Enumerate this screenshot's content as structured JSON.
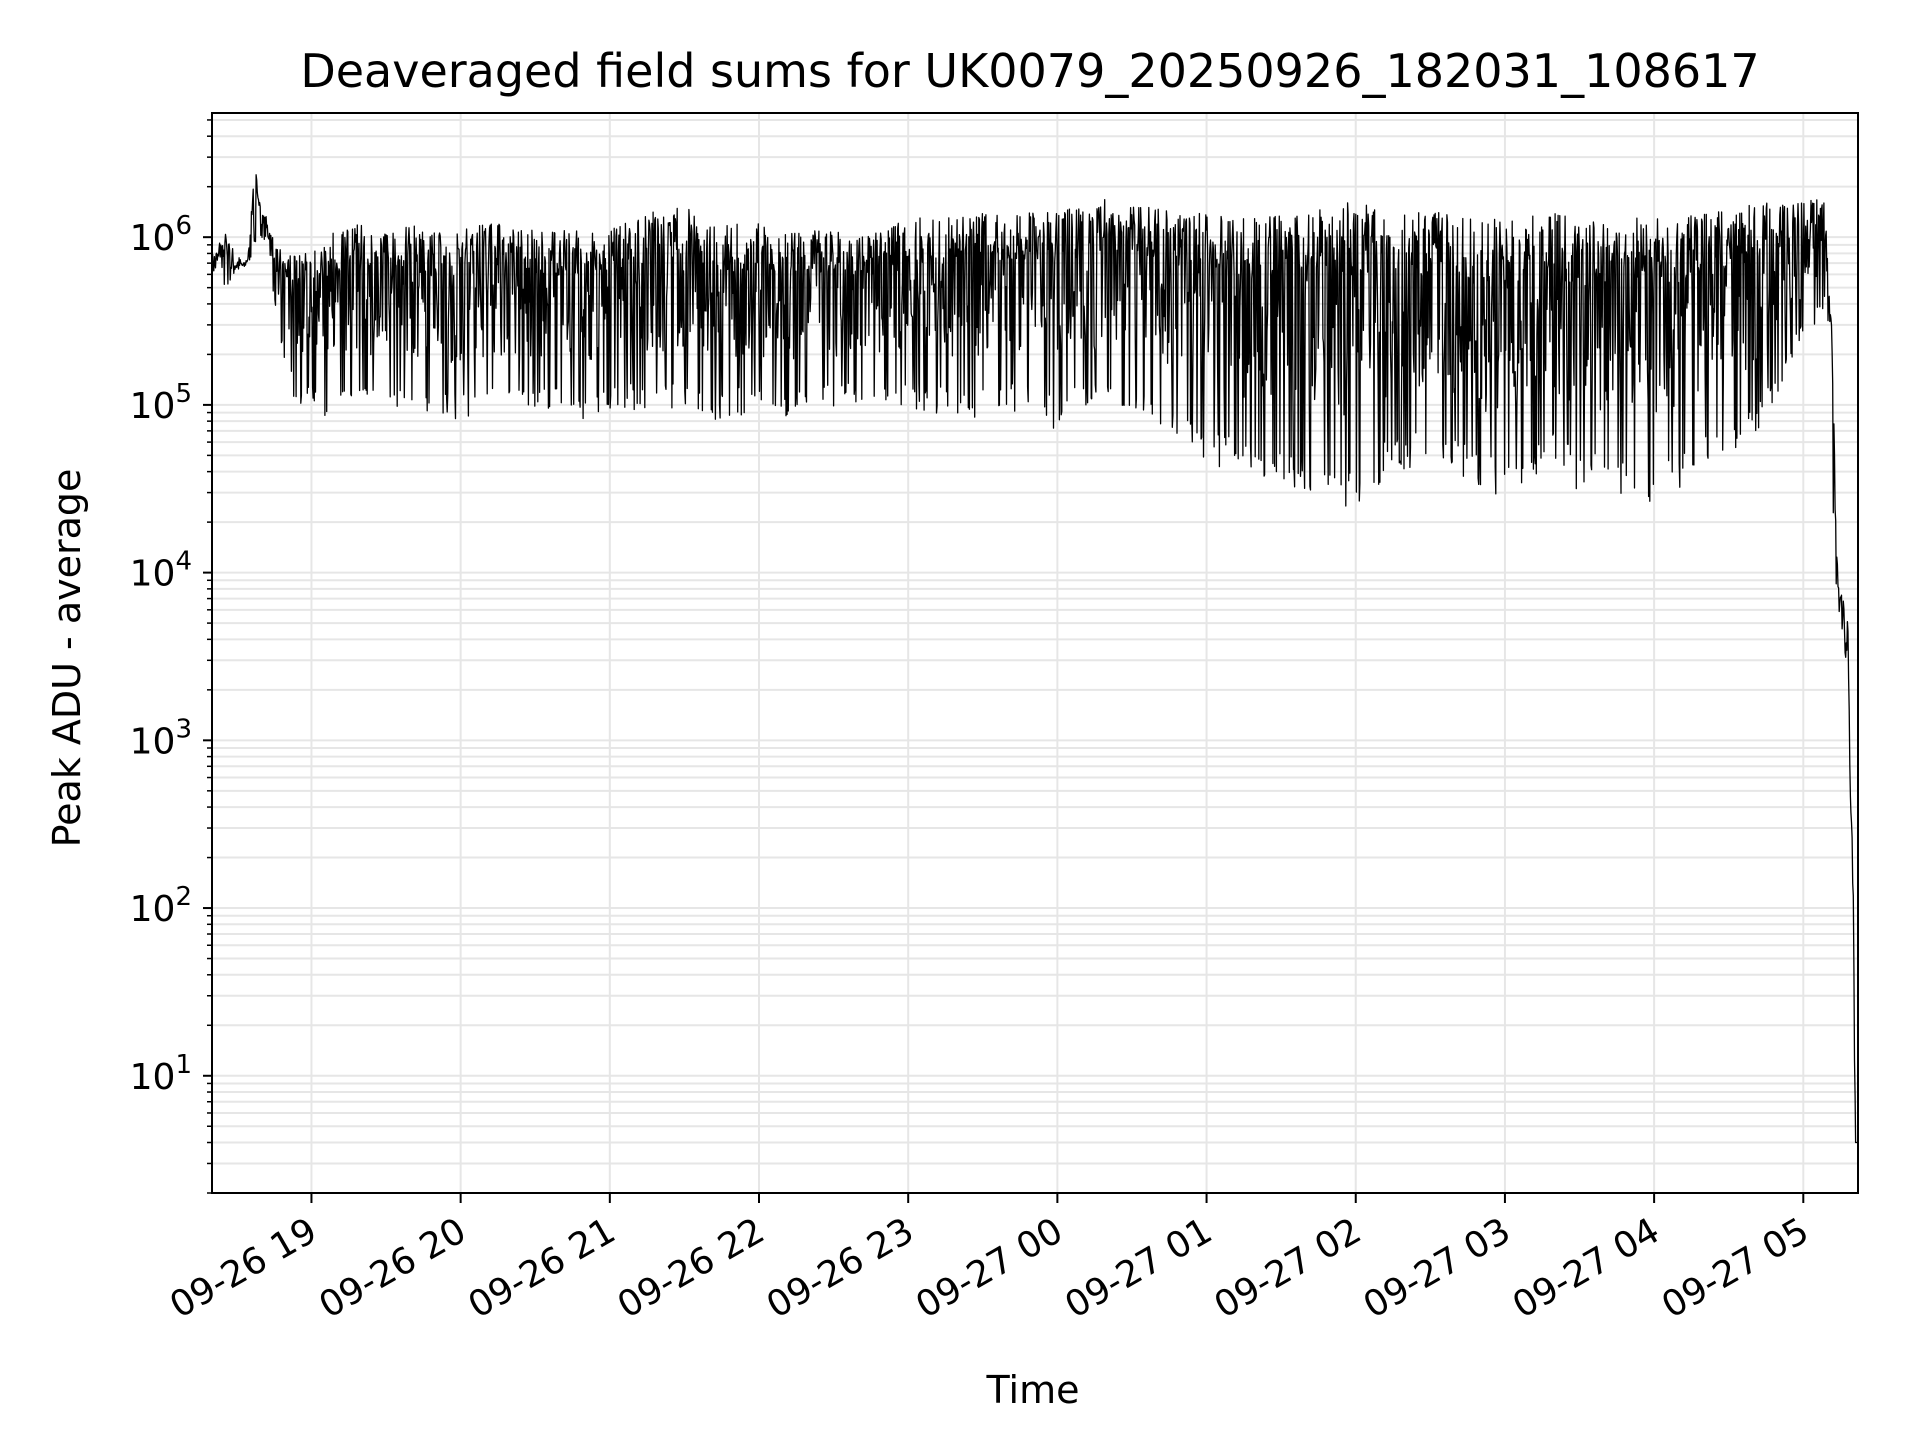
{
  "chart_data": {
    "type": "line",
    "title": "Deaveraged field sums for UK0079_20250926_182031_108617",
    "xlabel": "Time",
    "ylabel": "Peak ADU - average",
    "y_scale": "log",
    "ylim": [
      2,
      5500000
    ],
    "xlim": [
      "2025-09-26 18:20",
      "2025-09-27 05:22"
    ],
    "grid": true,
    "line_color": "#000000",
    "grid_color": "#e6e6e6",
    "x_ticks": [
      {
        "time": "2025-09-26 19:00",
        "label": "09-26 19"
      },
      {
        "time": "2025-09-26 20:00",
        "label": "09-26 20"
      },
      {
        "time": "2025-09-26 21:00",
        "label": "09-26 21"
      },
      {
        "time": "2025-09-26 22:00",
        "label": "09-26 22"
      },
      {
        "time": "2025-09-26 23:00",
        "label": "09-26 23"
      },
      {
        "time": "2025-09-27 00:00",
        "label": "09-27 00"
      },
      {
        "time": "2025-09-27 01:00",
        "label": "09-27 01"
      },
      {
        "time": "2025-09-27 02:00",
        "label": "09-27 02"
      },
      {
        "time": "2025-09-27 03:00",
        "label": "09-27 03"
      },
      {
        "time": "2025-09-27 04:00",
        "label": "09-27 04"
      },
      {
        "time": "2025-09-27 05:00",
        "label": "09-27 05"
      }
    ],
    "y_ticks": [
      {
        "value": 10,
        "base": "10",
        "exp": "1"
      },
      {
        "value": 100,
        "base": "10",
        "exp": "2"
      },
      {
        "value": 1000,
        "base": "10",
        "exp": "3"
      },
      {
        "value": 10000,
        "base": "10",
        "exp": "4"
      },
      {
        "value": 100000,
        "base": "10",
        "exp": "5"
      },
      {
        "value": 1000000,
        "base": "10",
        "exp": "6"
      }
    ],
    "series": [
      {
        "x": [
          "2025-09-26 18:20",
          "2025-09-26 18:25",
          "2025-09-26 18:28",
          "2025-09-26 18:30",
          "2025-09-26 18:33",
          "2025-09-26 18:35",
          "2025-09-26 18:37",
          "2025-09-26 18:40",
          "2025-09-26 18:43",
          "2025-09-26 18:45",
          "2025-09-26 18:48",
          "2025-09-26 18:50",
          "2025-09-26 18:53",
          "2025-09-26 18:55",
          "2025-09-26 18:58",
          "2025-09-26 19:00",
          "2025-09-26 19:10",
          "2025-09-26 19:20",
          "2025-09-26 19:30",
          "2025-09-26 19:40",
          "2025-09-26 19:50",
          "2025-09-26 20:00",
          "2025-09-26 20:10",
          "2025-09-26 20:20",
          "2025-09-26 20:30",
          "2025-09-26 20:40",
          "2025-09-26 20:50",
          "2025-09-26 21:00",
          "2025-09-26 21:10",
          "2025-09-26 21:20",
          "2025-09-26 21:30",
          "2025-09-26 21:40",
          "2025-09-26 21:50",
          "2025-09-26 22:00",
          "2025-09-26 22:10",
          "2025-09-26 22:20",
          "2025-09-26 22:30",
          "2025-09-26 22:40",
          "2025-09-26 22:50",
          "2025-09-26 23:00",
          "2025-09-26 23:10",
          "2025-09-26 23:20",
          "2025-09-26 23:30",
          "2025-09-26 23:40",
          "2025-09-26 23:50",
          "2025-09-27 00:00",
          "2025-09-27 00:10",
          "2025-09-27 00:20",
          "2025-09-27 00:30",
          "2025-09-27 00:40",
          "2025-09-27 00:50",
          "2025-09-27 01:00",
          "2025-09-27 01:10",
          "2025-09-27 01:20",
          "2025-09-27 01:30",
          "2025-09-27 01:40",
          "2025-09-27 01:50",
          "2025-09-27 02:00",
          "2025-09-27 02:10",
          "2025-09-27 02:20",
          "2025-09-27 02:30",
          "2025-09-27 02:40",
          "2025-09-27 02:50",
          "2025-09-27 03:00",
          "2025-09-27 03:10",
          "2025-09-27 03:20",
          "2025-09-27 03:30",
          "2025-09-27 03:40",
          "2025-09-27 03:50",
          "2025-09-27 04:00",
          "2025-09-27 04:10",
          "2025-09-27 04:20",
          "2025-09-27 04:30",
          "2025-09-27 04:40",
          "2025-09-27 04:50",
          "2025-09-27 05:00",
          "2025-09-27 05:05",
          "2025-09-27 05:09",
          "2025-09-27 05:10",
          "2025-09-27 05:11",
          "2025-09-27 05:12",
          "2025-09-27 05:13",
          "2025-09-27 05:14",
          "2025-09-27 05:15",
          "2025-09-27 05:16",
          "2025-09-27 05:18",
          "2025-09-27 05:19",
          "2025-09-27 05:20",
          "2025-09-27 05:21",
          "2025-09-27 05:22"
        ],
        "upper": [
          800000,
          1100000,
          900000,
          800000,
          700000,
          900000,
          2800000,
          1400000,
          1300000,
          900000,
          900000,
          800000,
          800000,
          800000,
          800000,
          1000000,
          1100000,
          1200000,
          1100000,
          1200000,
          1100000,
          1100000,
          1200000,
          1200000,
          1100000,
          1100000,
          1200000,
          1100000,
          1300000,
          1500000,
          1500000,
          1300000,
          1200000,
          1200000,
          1200000,
          1100000,
          1100000,
          1000000,
          1100000,
          1300000,
          1400000,
          1300000,
          1400000,
          1400000,
          1500000,
          1500000,
          1500000,
          1700000,
          1600000,
          1500000,
          1400000,
          1400000,
          1300000,
          1300000,
          1500000,
          1400000,
          1500000,
          1700000,
          1400000,
          1400000,
          1400000,
          1400000,
          1300000,
          1300000,
          1400000,
          1400000,
          1300000,
          1200000,
          1300000,
          1300000,
          1300000,
          1400000,
          1500000,
          1600000,
          1700000,
          1700000,
          1800000,
          1600000,
          650000,
          450000,
          150000,
          25000,
          9000,
          8000,
          7000,
          5000,
          500,
          200,
          4,
          4
        ],
        "lower": [
          600000,
          500000,
          550000,
          600000,
          650000,
          700000,
          800000,
          1000000,
          900000,
          400000,
          200000,
          150000,
          110000,
          100000,
          90000,
          95000,
          80000,
          90000,
          85000,
          90000,
          85000,
          80000,
          90000,
          85000,
          95000,
          90000,
          80000,
          95000,
          90000,
          85000,
          90000,
          75000,
          85000,
          90000,
          80000,
          95000,
          90000,
          100000,
          85000,
          95000,
          90000,
          85000,
          80000,
          90000,
          85000,
          70000,
          90000,
          85000,
          90000,
          80000,
          60000,
          45000,
          40000,
          35000,
          30000,
          30000,
          25000,
          20000,
          35000,
          40000,
          45000,
          40000,
          30000,
          25000,
          35000,
          40000,
          30000,
          30000,
          28000,
          25000,
          30000,
          40000,
          45000,
          60000,
          100000,
          250000,
          300000,
          400000,
          300000,
          120000,
          25000,
          3000,
          5000,
          4000,
          3500,
          2500,
          300,
          50,
          4,
          4
        ]
      }
    ]
  }
}
